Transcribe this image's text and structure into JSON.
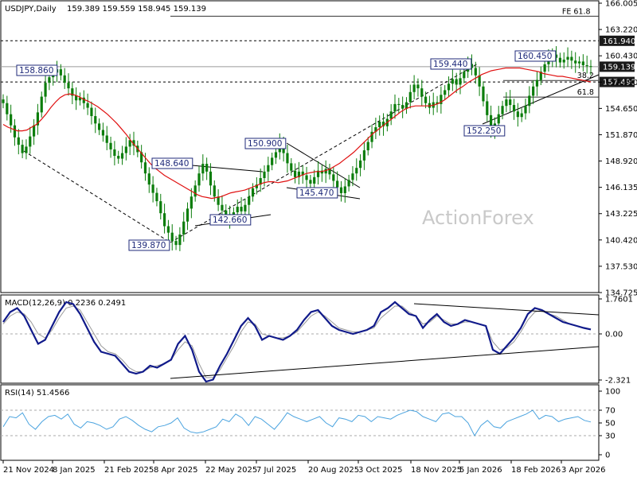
{
  "header": {
    "symbol": "USDJPY,Daily",
    "ohlc": "159.389 159.559 158.945 159.139"
  },
  "watermark": "ActionForex",
  "colors": {
    "candle": "#0b7d0b",
    "ma": "#e01010",
    "macd": "#101a8a",
    "signal": "#999999",
    "rsi": "#4aa3df",
    "label_border": "#1f2a7a",
    "price_box_bg": "#1a1a1a"
  },
  "chart_data": [
    {
      "type": "line",
      "title": "USDJPY,Daily",
      "ylim": [
        134.725,
        166.005
      ],
      "y_ticks": [
        "166.005",
        "163.220",
        "160.430",
        "157.490",
        "154.650",
        "151.870",
        "148.920",
        "146.135",
        "143.225",
        "140.420",
        "137.530",
        "134.725"
      ],
      "x_tick_labels": [
        "21 Nov 2024",
        "8 Jan 2025",
        "21 Feb 2025",
        "8 Apr 2025",
        "22 May 2025",
        "7 Jul 2025",
        "20 Aug 2025",
        "3 Oct 2025",
        "18 Nov 2025",
        "5 Jan 2026",
        "18 Feb 2026",
        "3 Apr 2026"
      ],
      "series": [
        {
          "values": [
            155.2,
            154.0,
            152.8,
            151.5,
            150.7,
            149.8,
            150.5,
            151.6,
            152.8,
            154.2,
            155.9,
            157.4,
            158.0,
            158.5,
            158.86,
            158.2,
            157.4,
            156.8,
            156.0,
            155.5,
            155.8,
            155.2,
            154.7,
            153.8,
            153.0,
            152.3,
            151.7,
            150.9,
            150.2,
            149.5,
            149.2,
            149.8,
            150.5,
            151.2,
            150.6,
            149.9,
            148.8,
            147.6,
            146.4,
            145.5,
            144.6,
            143.3,
            141.9,
            141.2,
            140.3,
            139.87,
            141.0,
            142.4,
            143.8,
            145.1,
            146.3,
            147.6,
            148.64,
            147.8,
            146.3,
            145.1,
            144.2,
            143.6,
            143.2,
            142.66,
            143.4,
            144.0,
            143.5,
            144.2,
            145.1,
            146.0,
            146.4,
            147.1,
            147.8,
            148.5,
            149.3,
            149.9,
            150.9,
            149.8,
            148.7,
            147.9,
            147.2,
            147.8,
            147.4,
            146.9,
            146.5,
            147.2,
            147.9,
            147.6,
            148.1,
            147.5,
            146.8,
            146.1,
            145.47,
            146.2,
            146.9,
            147.6,
            148.2,
            149.0,
            150.1,
            151.0,
            152.1,
            152.6,
            153.2,
            152.7,
            153.5,
            154.3,
            155.1,
            155.0,
            154.6,
            155.3,
            156.4,
            157.2,
            156.8,
            155.9,
            155.2,
            154.7,
            155.3,
            155.1,
            156.1,
            156.6,
            157.3,
            157.8,
            157.2,
            157.9,
            158.6,
            159.44,
            159.0,
            158.2,
            157.0,
            155.4,
            153.9,
            152.25,
            153.0,
            154.0,
            154.9,
            155.6,
            155.0,
            154.3,
            153.7,
            154.1,
            154.9,
            156.0,
            157.0,
            157.7,
            158.6,
            159.4,
            160.0,
            160.45,
            160.1,
            159.6,
            159.9,
            160.2,
            159.8,
            159.5,
            159.7,
            159.3,
            159.2,
            159.139
          ]
        },
        {
          "name": "MA",
          "values": [
            152.9,
            152.6,
            152.4,
            152.2,
            152.2,
            152.3,
            152.6,
            152.9,
            153.4,
            154.0,
            154.7,
            155.3,
            155.8,
            156.1,
            156.2,
            156.1,
            155.9,
            155.6,
            155.4,
            155.1,
            154.8,
            154.4,
            154.0,
            153.5,
            153.0,
            152.4,
            151.8,
            151.1,
            150.5,
            149.9,
            149.3,
            148.7,
            148.2,
            147.8,
            147.4,
            147.1,
            146.8,
            146.5,
            146.2,
            145.9,
            145.6,
            145.3,
            145.1,
            145.0,
            144.9,
            145.0,
            145.1,
            145.3,
            145.5,
            145.6,
            145.7,
            145.8,
            146.0,
            146.2,
            146.4,
            146.6,
            146.7,
            146.7,
            146.6,
            146.7,
            146.8,
            147.0,
            147.2,
            147.4,
            147.6,
            147.7,
            147.8,
            147.8,
            147.9,
            148.1,
            148.4,
            148.7,
            149.1,
            149.5,
            149.9,
            150.4,
            150.9,
            151.4,
            151.9,
            152.3,
            152.7,
            153.1,
            153.5,
            153.9,
            154.3,
            154.6,
            154.8,
            154.9,
            154.9,
            154.9,
            154.9,
            155.0,
            155.2,
            155.5,
            155.9,
            156.3,
            156.7,
            157.0,
            157.4,
            157.7,
            158.0,
            158.3,
            158.5,
            158.7,
            158.8,
            158.9,
            159.0,
            159.0,
            159.0,
            159.0,
            158.9,
            158.8,
            158.7,
            158.6,
            158.4,
            158.3,
            158.2,
            158.1,
            158.1,
            158.0,
            157.9,
            157.8,
            157.7,
            157.6,
            157.5
          ]
        }
      ],
      "annotations": [
        "158.860",
        "148.640",
        "142.660",
        "139.870",
        "150.900",
        "145.470",
        "159.440",
        "152.250",
        "160.450"
      ],
      "levels": [
        {
          "label": "FE 61.8",
          "value": 164.6
        },
        {
          "label": "161.940",
          "value": 161.94,
          "boxed": true
        },
        {
          "label": "159.139",
          "value": 159.139,
          "boxed": true
        },
        {
          "label": "157.490",
          "value": 157.49,
          "boxed": true
        },
        {
          "label": "38.2",
          "value": 157.65
        },
        {
          "label": "61.8",
          "value": 155.85
        }
      ]
    },
    {
      "type": "line",
      "title": "MACD(12,26,9) 0.2236 0.2491",
      "ylim": [
        -2.321,
        1.7601
      ],
      "y_ticks": [
        "1.7601",
        "0.00",
        "-2.321"
      ],
      "series": [
        {
          "name": "MACD",
          "values": [
            0.6,
            1.1,
            1.3,
            0.9,
            0.2,
            -0.5,
            -0.3,
            0.4,
            1.1,
            1.6,
            1.5,
            1.0,
            0.3,
            -0.4,
            -0.9,
            -1.0,
            -1.1,
            -1.5,
            -1.9,
            -2.0,
            -1.9,
            -1.6,
            -1.7,
            -1.5,
            -1.3,
            -0.5,
            -0.1,
            -0.8,
            -1.9,
            -2.4,
            -2.3,
            -1.6,
            -1.0,
            -0.3,
            0.4,
            0.8,
            0.4,
            -0.3,
            -0.1,
            -0.2,
            -0.3,
            -0.1,
            0.2,
            0.7,
            1.1,
            1.2,
            0.8,
            0.4,
            0.2,
            0.1,
            0.0,
            0.1,
            0.2,
            0.4,
            1.1,
            1.3,
            1.6,
            1.3,
            1.0,
            0.9,
            0.3,
            0.7,
            1.0,
            0.6,
            0.4,
            0.5,
            0.7,
            0.6,
            0.5,
            0.4,
            -0.8,
            -1.0,
            -0.6,
            -0.2,
            0.3,
            1.0,
            1.3,
            1.2,
            1.0,
            0.8,
            0.6,
            0.5,
            0.4,
            0.3,
            0.2236
          ]
        },
        {
          "name": "Signal",
          "values": [
            0.5,
            0.9,
            1.1,
            1.0,
            0.6,
            0.0,
            -0.2,
            0.2,
            0.8,
            1.3,
            1.4,
            1.2,
            0.6,
            0.0,
            -0.6,
            -0.9,
            -1.0,
            -1.3,
            -1.7,
            -1.9,
            -1.9,
            -1.7,
            -1.6,
            -1.5,
            -1.3,
            -0.8,
            -0.4,
            -0.6,
            -1.5,
            -2.2,
            -2.2,
            -1.8,
            -1.2,
            -0.6,
            0.1,
            0.6,
            0.5,
            0.0,
            -0.1,
            -0.2,
            -0.2,
            -0.1,
            0.1,
            0.5,
            0.9,
            1.1,
            0.9,
            0.6,
            0.3,
            0.2,
            0.1,
            0.1,
            0.2,
            0.3,
            0.8,
            1.1,
            1.4,
            1.4,
            1.1,
            0.9,
            0.5,
            0.6,
            0.9,
            0.7,
            0.5,
            0.5,
            0.6,
            0.6,
            0.5,
            0.4,
            -0.4,
            -0.8,
            -0.7,
            -0.4,
            0.1,
            0.7,
            1.1,
            1.2,
            1.0,
            0.9,
            0.7,
            0.5,
            0.4,
            0.3,
            0.2491
          ]
        }
      ]
    },
    {
      "type": "line",
      "title": "RSI(14) 51.4566",
      "ylim": [
        0,
        100
      ],
      "y_ticks": [
        "100",
        "70",
        "50",
        "30",
        "0"
      ],
      "series": [
        {
          "name": "RSI",
          "values": [
            44,
            60,
            58,
            66,
            48,
            40,
            52,
            60,
            62,
            56,
            64,
            48,
            42,
            52,
            50,
            46,
            40,
            44,
            56,
            60,
            54,
            46,
            40,
            36,
            44,
            46,
            50,
            58,
            42,
            36,
            34,
            36,
            40,
            44,
            56,
            52,
            64,
            58,
            46,
            60,
            56,
            48,
            40,
            52,
            66,
            60,
            56,
            52,
            56,
            60,
            50,
            44,
            58,
            56,
            52,
            62,
            60,
            52,
            60,
            58,
            56,
            62,
            66,
            70,
            68,
            60,
            56,
            52,
            64,
            66,
            60,
            60,
            50,
            30,
            46,
            54,
            44,
            42,
            52,
            56,
            60,
            64,
            70,
            56,
            62,
            60,
            52,
            56,
            58,
            60,
            54,
            51.4566
          ]
        }
      ]
    }
  ],
  "panels": {
    "price": {
      "label": "USDJPY,Daily 159.389 159.559 158.945 159.139"
    },
    "macd": {
      "label": "MACD(12,26,9) 0.2236 0.2491"
    },
    "rsi": {
      "label": "RSI(14) 51.4566"
    }
  }
}
